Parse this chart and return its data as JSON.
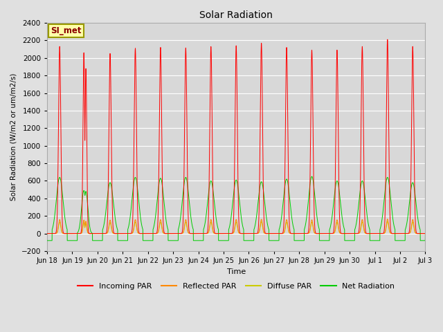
{
  "title": "Solar Radiation",
  "ylabel": "Solar Radiation (W/m2 or um/m2/s)",
  "xlabel": "Time",
  "ylim": [
    -200,
    2400
  ],
  "yticks": [
    -200,
    0,
    200,
    400,
    600,
    800,
    1000,
    1200,
    1400,
    1600,
    1800,
    2000,
    2200,
    2400
  ],
  "fig_bg_color": "#e0e0e0",
  "plot_bg_color": "#d8d8d8",
  "grid_color": "#ffffff",
  "colors": {
    "incoming": "#ff0000",
    "reflected": "#ff8800",
    "diffuse": "#cccc00",
    "net": "#00cc00"
  },
  "legend_labels": [
    "Incoming PAR",
    "Reflected PAR",
    "Diffuse PAR",
    "Net Radiation"
  ],
  "station_label": "SI_met",
  "n_days": 15,
  "tick_labels": [
    "Jun 18",
    "Jun 19",
    "Jun 20",
    "Jun 21",
    "Jun 22",
    "Jun 23",
    "Jun 24",
    "Jun 25",
    "Jun 26",
    "Jun 27",
    "Jun 28",
    "Jun 29",
    "Jun 30",
    "Jul 1",
    "Jul 2",
    "Jul 3"
  ]
}
